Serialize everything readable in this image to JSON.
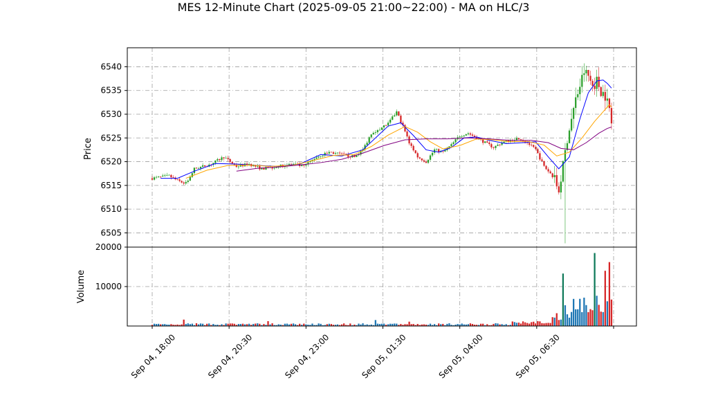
{
  "chart_data": {
    "type": "candlestick",
    "title": "MES 12-Minute Chart (2025-09-05 21:00~22:00) - MA on HLC/3",
    "price_panel": {
      "ylabel": "Price",
      "ylim": [
        6502,
        6544
      ],
      "yticks": [
        6505,
        6510,
        6515,
        6520,
        6525,
        6530,
        6535,
        6540
      ],
      "ytick_labels": [
        "6505",
        "6510",
        "6515",
        "6520",
        "6525",
        "6530",
        "6535",
        "6540"
      ],
      "grid": true,
      "close_path": [
        [
          0,
          6516.5
        ],
        [
          8,
          6517
        ],
        [
          12,
          6516
        ],
        [
          15,
          6515.5
        ],
        [
          17,
          6516
        ],
        [
          20,
          6518.5
        ],
        [
          28,
          6519.5
        ],
        [
          34,
          6521
        ],
        [
          40,
          6519
        ],
        [
          46,
          6519.5
        ],
        [
          52,
          6518.5
        ],
        [
          60,
          6519
        ],
        [
          66,
          6519.5
        ],
        [
          72,
          6519
        ],
        [
          78,
          6521
        ],
        [
          84,
          6522
        ],
        [
          90,
          6521.5
        ],
        [
          96,
          6521
        ],
        [
          100,
          6522.5
        ],
        [
          104,
          6526
        ],
        [
          108,
          6527
        ],
        [
          112,
          6528
        ],
        [
          116,
          6530.5
        ],
        [
          119,
          6527.5
        ],
        [
          122,
          6524
        ],
        [
          126,
          6521
        ],
        [
          130,
          6520
        ],
        [
          134,
          6522.5
        ],
        [
          138,
          6522
        ],
        [
          142,
          6523.5
        ],
        [
          146,
          6525.5
        ],
        [
          150,
          6526
        ],
        [
          154,
          6525
        ],
        [
          158,
          6524
        ],
        [
          162,
          6523
        ],
        [
          166,
          6524
        ],
        [
          170,
          6524.5
        ],
        [
          174,
          6525
        ],
        [
          178,
          6524
        ],
        [
          182,
          6522.5
        ],
        [
          186,
          6519
        ],
        [
          190,
          6517
        ],
        [
          193,
          6514
        ],
        [
          195,
          6519
        ],
        [
          197,
          6525
        ],
        [
          199,
          6529
        ],
        [
          201,
          6533
        ],
        [
          203,
          6536
        ],
        [
          205,
          6539
        ],
        [
          207,
          6538
        ],
        [
          209,
          6536
        ],
        [
          211,
          6537
        ],
        [
          213,
          6535
        ],
        [
          215,
          6534
        ],
        [
          217,
          6531
        ],
        [
          218,
          6528
        ]
      ],
      "ma_series": [
        {
          "color": "#0000ff",
          "points": [
            [
              4,
              6516.5
            ],
            [
              12,
              6516.5
            ],
            [
              20,
              6518
            ],
            [
              30,
              6519.6
            ],
            [
              40,
              6519.5
            ],
            [
              50,
              6519.2
            ],
            [
              60,
              6519
            ],
            [
              70,
              6519.5
            ],
            [
              80,
              6521.5
            ],
            [
              90,
              6521.2
            ],
            [
              100,
              6522.5
            ],
            [
              106,
              6525
            ],
            [
              112,
              6527.5
            ],
            [
              118,
              6528.2
            ],
            [
              124,
              6525.5
            ],
            [
              130,
              6522.5
            ],
            [
              136,
              6522
            ],
            [
              142,
              6523
            ],
            [
              148,
              6525
            ],
            [
              154,
              6525.2
            ],
            [
              160,
              6524.5
            ],
            [
              168,
              6523.8
            ],
            [
              176,
              6524
            ],
            [
              182,
              6524.2
            ],
            [
              188,
              6521
            ],
            [
              193,
              6518.5
            ],
            [
              198,
              6521
            ],
            [
              203,
              6529
            ],
            [
              207,
              6534.5
            ],
            [
              211,
              6537
            ],
            [
              214,
              6537.2
            ],
            [
              216,
              6536.5
            ],
            [
              218,
              6535.5
            ]
          ]
        },
        {
          "color": "#ffa500",
          "points": [
            [
              16,
              6516.5
            ],
            [
              26,
              6518.2
            ],
            [
              36,
              6519.2
            ],
            [
              46,
              6519.3
            ],
            [
              56,
              6519
            ],
            [
              66,
              6519.2
            ],
            [
              76,
              6520.2
            ],
            [
              86,
              6521.3
            ],
            [
              96,
              6521.5
            ],
            [
              104,
              6523.2
            ],
            [
              112,
              6525.6
            ],
            [
              120,
              6527.4
            ],
            [
              126,
              6526.2
            ],
            [
              132,
              6524.2
            ],
            [
              138,
              6522.7
            ],
            [
              146,
              6523.4
            ],
            [
              154,
              6524.8
            ],
            [
              162,
              6524.6
            ],
            [
              170,
              6524.2
            ],
            [
              178,
              6524.3
            ],
            [
              186,
              6523.5
            ],
            [
              192,
              6521.2
            ],
            [
              198,
              6522
            ],
            [
              204,
              6525
            ],
            [
              210,
              6528.5
            ],
            [
              214,
              6530.5
            ],
            [
              217,
              6532
            ],
            [
              218,
              6531.5
            ]
          ]
        },
        {
          "color": "#800080",
          "points": [
            [
              40,
              6518
            ],
            [
              50,
              6518.6
            ],
            [
              60,
              6518.9
            ],
            [
              70,
              6519.3
            ],
            [
              80,
              6519.8
            ],
            [
              90,
              6520.5
            ],
            [
              100,
              6521.8
            ],
            [
              110,
              6523.4
            ],
            [
              120,
              6524.6
            ],
            [
              130,
              6524.8
            ],
            [
              140,
              6524.8
            ],
            [
              150,
              6525
            ],
            [
              160,
              6524.8
            ],
            [
              170,
              6524.5
            ],
            [
              180,
              6524.5
            ],
            [
              188,
              6524
            ],
            [
              194,
              6522.8
            ],
            [
              200,
              6522.5
            ],
            [
              206,
              6524
            ],
            [
              212,
              6526
            ],
            [
              216,
              6527
            ],
            [
              218,
              6527.3
            ]
          ]
        }
      ]
    },
    "volume_panel": {
      "ylabel": "Volume",
      "ylim": [
        0,
        20000
      ],
      "yticks": [
        10000,
        20000
      ],
      "ytick_labels": [
        "10000",
        "20000"
      ],
      "grid": true
    },
    "x_axis": {
      "bar_count": 219,
      "tick_labels": [
        "Sep 04, 18:00",
        "Sep 04, 20:30",
        "Sep 04, 23:00",
        "Sep 05, 01:30",
        "Sep 05, 04:00",
        "Sep 05, 06:30"
      ],
      "tick_bar_indices": [
        0,
        36.5,
        73,
        109.5,
        146,
        182.5
      ],
      "last_tick_bar_index": 219
    },
    "colors": {
      "up": "#2ca02c",
      "down": "#d62728",
      "volume_up": "#1f77b4",
      "volume_down": "#d62728",
      "volume_dark": "#0f7a5a",
      "grid": "#9e9e9e"
    }
  }
}
